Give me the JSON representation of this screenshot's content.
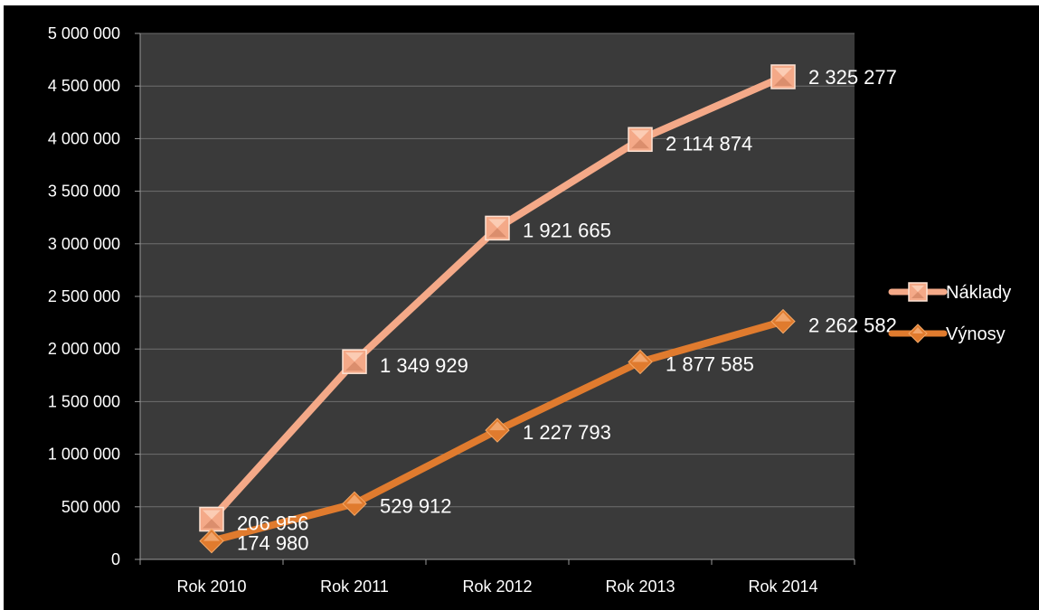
{
  "chart_data": {
    "type": "line",
    "categories": [
      "Rok 2010",
      "Rok 2011",
      "Rok 2012",
      "Rok 2013",
      "Rok 2014"
    ],
    "ylim": [
      0,
      5000000
    ],
    "y_ticks": [
      {
        "value": 0,
        "label": "0"
      },
      {
        "value": 500000,
        "label": "500 000"
      },
      {
        "value": 1000000,
        "label": "1 000 000"
      },
      {
        "value": 1500000,
        "label": "1 500 000"
      },
      {
        "value": 2000000,
        "label": "2 000 000"
      },
      {
        "value": 2500000,
        "label": "2 500 000"
      },
      {
        "value": 3000000,
        "label": "3 000 000"
      },
      {
        "value": 3500000,
        "label": "3 500 000"
      },
      {
        "value": 4000000,
        "label": "4 000 000"
      },
      {
        "value": 4500000,
        "label": "4 500 000"
      },
      {
        "value": 5000000,
        "label": "5 000 000"
      }
    ],
    "grid": true,
    "legend_position": "right",
    "series": [
      {
        "name": "Náklady",
        "color": "#F4A988",
        "marker": "square",
        "values": [
          381936,
          1879841,
          3149458,
          3992332,
          4587859
        ],
        "data_labels": [
          "206 956",
          "1 349 929",
          "1 921 665",
          "2 114 874",
          "2 325 277"
        ]
      },
      {
        "name": "Výnosy",
        "color": "#E07B2E",
        "marker": "diamond",
        "values": [
          174980,
          529912,
          1227793,
          1877585,
          2262582
        ],
        "data_labels": [
          "174 980",
          "529 912",
          "1 227 793",
          "1 877 585",
          "2 262 582"
        ]
      }
    ]
  },
  "colors": {
    "background": "#000000",
    "plot_area": "#3A3A3A",
    "gridline": "#6E6E6E",
    "axis": "#9A9A9A"
  }
}
